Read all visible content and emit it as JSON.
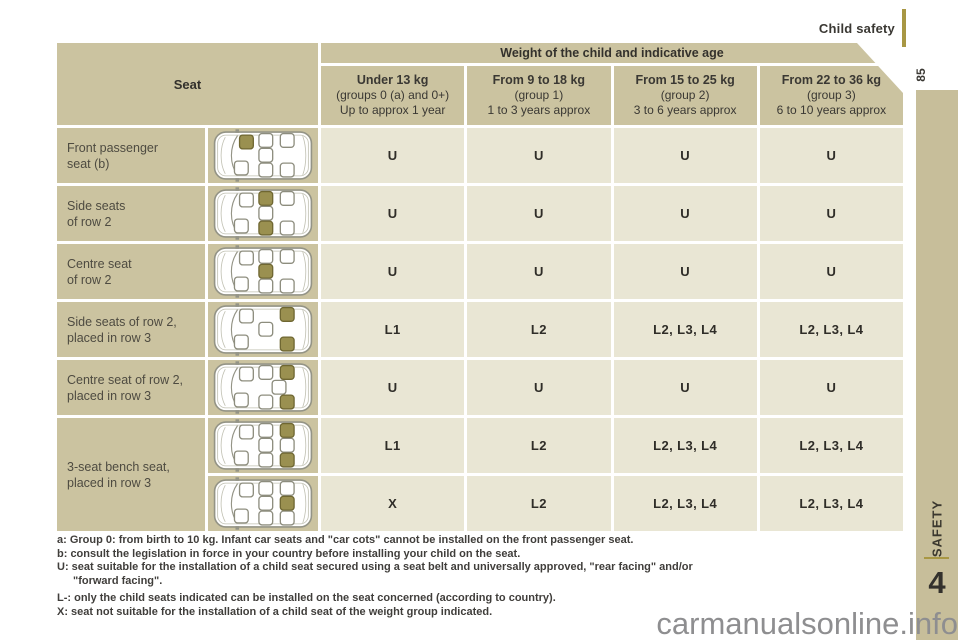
{
  "header": {
    "title": "Child safety",
    "page_number": "85"
  },
  "sidebar": {
    "section": "SAFETY",
    "chapter": "4"
  },
  "watermark": "carmanualsonline.info",
  "colors": {
    "table_tan": "#cbc3a0",
    "cell_light": "#e9e6d4",
    "sidebar_tan": "#c7be9a",
    "gold_accent": "#a89744",
    "seat_highlight": "#9a9050",
    "seat_highlight_stroke": "#6f6732",
    "car_stroke": "#949486"
  },
  "table": {
    "seat_header": "Seat",
    "group_header": "Weight of the child and indicative age",
    "columns": [
      {
        "title": "Under 13 kg",
        "line2": "(groups 0 (a) and 0+)",
        "line3": "Up to approx 1 year"
      },
      {
        "title": "From 9 to 18 kg",
        "line2": "(group 1)",
        "line3": "1 to 3 years approx"
      },
      {
        "title": "From 15 to 25 kg",
        "line2": "(group 2)",
        "line3": "3 to 6 years approx"
      },
      {
        "title": "From 22 to 36 kg",
        "line2": "(group 3)",
        "line3": "6 to 10 years approx"
      }
    ],
    "rows": [
      {
        "label": "Front passenger\nseat (b)",
        "values": [
          "U",
          "U",
          "U",
          "U"
        ],
        "seats": [
          {
            "pos": "fp",
            "hl": true
          },
          {
            "pos": "dr"
          },
          {
            "pos": "r2t"
          },
          {
            "pos": "r2c"
          },
          {
            "pos": "r2b"
          },
          {
            "pos": "r3t"
          },
          {
            "pos": "r3b"
          }
        ]
      },
      {
        "label": "Side seats\nof row 2",
        "values": [
          "U",
          "U",
          "U",
          "U"
        ],
        "seats": [
          {
            "pos": "fp"
          },
          {
            "pos": "dr"
          },
          {
            "pos": "r2t",
            "hl": true
          },
          {
            "pos": "r2c"
          },
          {
            "pos": "r2b",
            "hl": true
          },
          {
            "pos": "r3t"
          },
          {
            "pos": "r3b"
          }
        ]
      },
      {
        "label": "Centre seat\nof row 2",
        "values": [
          "U",
          "U",
          "U",
          "U"
        ],
        "seats": [
          {
            "pos": "fp"
          },
          {
            "pos": "dr"
          },
          {
            "pos": "r2t"
          },
          {
            "pos": "r2c",
            "hl": true
          },
          {
            "pos": "r2b"
          },
          {
            "pos": "r3t"
          },
          {
            "pos": "r3b"
          }
        ]
      },
      {
        "label": "Side seats of row 2,\nplaced in row 3",
        "values": [
          "L1",
          "L2",
          "L2, L3, L4",
          "L2, L3, L4"
        ],
        "seats": [
          {
            "pos": "fp"
          },
          {
            "pos": "dr"
          },
          {
            "pos": "r2c"
          },
          {
            "pos": "r3t",
            "hl": true
          },
          {
            "pos": "r3b",
            "hl": true
          }
        ]
      },
      {
        "label": "Centre seat of row 2,\nplaced in row 3",
        "values": [
          "U",
          "U",
          "U",
          "U"
        ],
        "seats": [
          {
            "pos": "fp"
          },
          {
            "pos": "dr"
          },
          {
            "pos": "r2t"
          },
          {
            "pos": "r2b"
          },
          {
            "pos": "r3m"
          },
          {
            "pos": "r3t",
            "hl": true
          },
          {
            "pos": "r3b",
            "hl": true
          }
        ]
      },
      {
        "label": "3-seat bench seat,\nplaced in row 3",
        "rowspan": 2,
        "values": [
          "L1",
          "L2",
          "L2, L3, L4",
          "L2, L3, L4"
        ],
        "seats": [
          {
            "pos": "fp"
          },
          {
            "pos": "dr"
          },
          {
            "pos": "r2t"
          },
          {
            "pos": "r2c"
          },
          {
            "pos": "r2b"
          },
          {
            "pos": "r3t",
            "hl": true
          },
          {
            "pos": "r3c"
          },
          {
            "pos": "r3b",
            "hl": true
          }
        ]
      },
      {
        "values": [
          "X",
          "L2",
          "L2, L3, L4",
          "L2, L3, L4"
        ],
        "seats": [
          {
            "pos": "fp"
          },
          {
            "pos": "dr"
          },
          {
            "pos": "r2t"
          },
          {
            "pos": "r2c"
          },
          {
            "pos": "r2b"
          },
          {
            "pos": "r3t"
          },
          {
            "pos": "r3c",
            "hl": true
          },
          {
            "pos": "r3b"
          }
        ]
      }
    ]
  },
  "footnotes": [
    {
      "text": "a: Group 0: from birth to 10 kg. Infant car seats and \"car cots\" cannot be installed on the front passenger seat."
    },
    {
      "text": "b: consult the legislation in force in your country before installing your child on the seat."
    },
    {
      "text": "U: seat suitable for the installation of a child seat secured using a seat belt and universally approved, \"rear facing\" and/or"
    },
    {
      "text": "\"forward facing\".",
      "indent": true
    },
    {
      "text": "L-: only the child seats indicated can be installed on the seat concerned (according to country).",
      "gap": true
    },
    {
      "text": "X: seat not suitable for the installation of a child seat of the weight group indicated."
    }
  ]
}
